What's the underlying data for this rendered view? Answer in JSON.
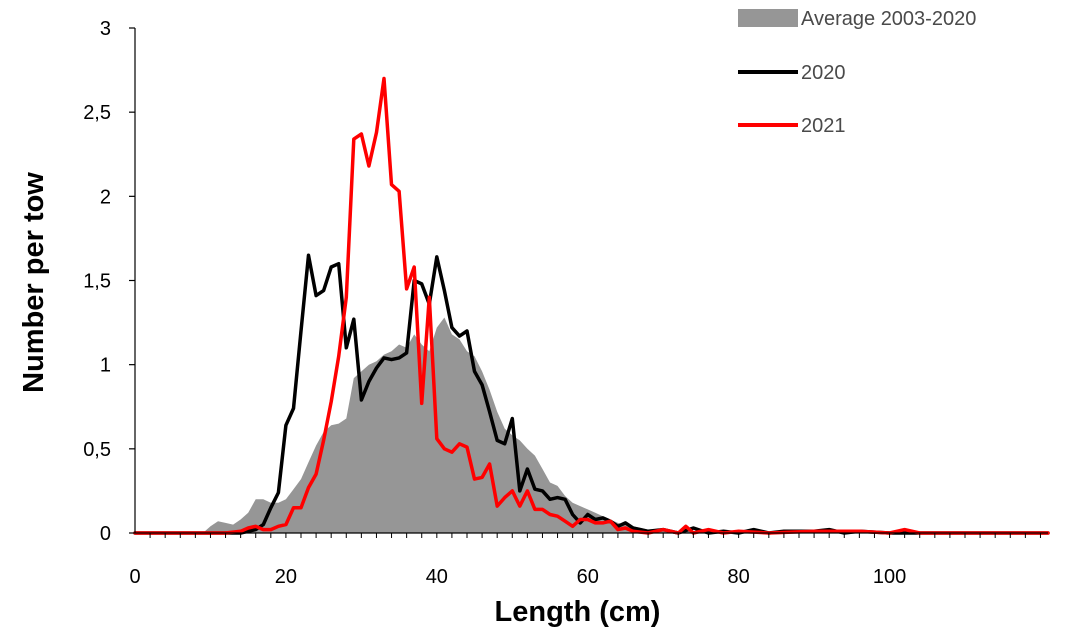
{
  "chart_data": {
    "type": "area",
    "title": "",
    "xlabel": "Length (cm)",
    "ylabel": "Number per tow",
    "xlim": [
      0,
      121
    ],
    "ylim": [
      0,
      3
    ],
    "x_ticks": [
      {
        "value": 0,
        "label": "0"
      },
      {
        "value": 20,
        "label": "20"
      },
      {
        "value": 40,
        "label": "40"
      },
      {
        "value": 60,
        "label": "60"
      },
      {
        "value": 80,
        "label": "80"
      },
      {
        "value": 100,
        "label": "100"
      }
    ],
    "y_ticks": [
      {
        "value": 0,
        "label": "0"
      },
      {
        "value": 0.5,
        "label": "0,5"
      },
      {
        "value": 1,
        "label": "1"
      },
      {
        "value": 1.5,
        "label": "1,5"
      },
      {
        "value": 2,
        "label": "2"
      },
      {
        "value": 2.5,
        "label": "2,5"
      },
      {
        "value": 3,
        "label": "3"
      }
    ],
    "grid": false,
    "legend_position": "top-right",
    "series": [
      {
        "name": "Average 2003-2020",
        "kind": "area",
        "color": "#969696",
        "points": [
          [
            0,
            0
          ],
          [
            5,
            0
          ],
          [
            9,
            0
          ],
          [
            10,
            0.04
          ],
          [
            11,
            0.07
          ],
          [
            12,
            0.06
          ],
          [
            13,
            0.05
          ],
          [
            14,
            0.08
          ],
          [
            15,
            0.12
          ],
          [
            16,
            0.2
          ],
          [
            17,
            0.2
          ],
          [
            18,
            0.18
          ],
          [
            19,
            0.18
          ],
          [
            20,
            0.2
          ],
          [
            21,
            0.26
          ],
          [
            22,
            0.32
          ],
          [
            23,
            0.42
          ],
          [
            24,
            0.52
          ],
          [
            25,
            0.6
          ],
          [
            26,
            0.64
          ],
          [
            27,
            0.65
          ],
          [
            28,
            0.68
          ],
          [
            29,
            0.92
          ],
          [
            30,
            0.96
          ],
          [
            31,
            1.0
          ],
          [
            32,
            1.02
          ],
          [
            33,
            1.06
          ],
          [
            34,
            1.08
          ],
          [
            35,
            1.12
          ],
          [
            36,
            1.1
          ],
          [
            37,
            1.18
          ],
          [
            38,
            1.12
          ],
          [
            39,
            1.08
          ],
          [
            40,
            1.22
          ],
          [
            41,
            1.28
          ],
          [
            42,
            1.18
          ],
          [
            43,
            1.15
          ],
          [
            44,
            1.08
          ],
          [
            45,
            1.05
          ],
          [
            46,
            0.96
          ],
          [
            47,
            0.85
          ],
          [
            48,
            0.72
          ],
          [
            49,
            0.62
          ],
          [
            50,
            0.58
          ],
          [
            51,
            0.55
          ],
          [
            52,
            0.5
          ],
          [
            53,
            0.46
          ],
          [
            54,
            0.38
          ],
          [
            55,
            0.3
          ],
          [
            56,
            0.28
          ],
          [
            57,
            0.22
          ],
          [
            58,
            0.18
          ],
          [
            59,
            0.16
          ],
          [
            60,
            0.14
          ],
          [
            61,
            0.12
          ],
          [
            62,
            0.1
          ],
          [
            63,
            0.08
          ],
          [
            64,
            0.06
          ],
          [
            65,
            0.05
          ],
          [
            66,
            0.04
          ],
          [
            67,
            0.03
          ],
          [
            68,
            0.02
          ],
          [
            69,
            0.02
          ],
          [
            70,
            0.01
          ],
          [
            75,
            0.01
          ],
          [
            80,
            0
          ],
          [
            121,
            0
          ]
        ]
      },
      {
        "name": "2020",
        "kind": "line",
        "color": "#000000",
        "points": [
          [
            0,
            0
          ],
          [
            10,
            0
          ],
          [
            12,
            0
          ],
          [
            14,
            0
          ],
          [
            15,
            0.01
          ],
          [
            16,
            0.02
          ],
          [
            17,
            0.05
          ],
          [
            18,
            0.15
          ],
          [
            19,
            0.24
          ],
          [
            20,
            0.64
          ],
          [
            21,
            0.74
          ],
          [
            22,
            1.2
          ],
          [
            23,
            1.65
          ],
          [
            24,
            1.41
          ],
          [
            25,
            1.44
          ],
          [
            26,
            1.58
          ],
          [
            27,
            1.6
          ],
          [
            28,
            1.1
          ],
          [
            29,
            1.27
          ],
          [
            30,
            0.79
          ],
          [
            31,
            0.9
          ],
          [
            32,
            0.98
          ],
          [
            33,
            1.04
          ],
          [
            34,
            1.03
          ],
          [
            35,
            1.04
          ],
          [
            36,
            1.07
          ],
          [
            37,
            1.5
          ],
          [
            38,
            1.48
          ],
          [
            39,
            1.36
          ],
          [
            40,
            1.64
          ],
          [
            41,
            1.44
          ],
          [
            42,
            1.22
          ],
          [
            43,
            1.17
          ],
          [
            44,
            1.2
          ],
          [
            45,
            0.96
          ],
          [
            46,
            0.88
          ],
          [
            47,
            0.72
          ],
          [
            48,
            0.55
          ],
          [
            49,
            0.53
          ],
          [
            50,
            0.68
          ],
          [
            51,
            0.25
          ],
          [
            52,
            0.38
          ],
          [
            53,
            0.26
          ],
          [
            54,
            0.25
          ],
          [
            55,
            0.2
          ],
          [
            56,
            0.21
          ],
          [
            57,
            0.2
          ],
          [
            58,
            0.11
          ],
          [
            59,
            0.06
          ],
          [
            60,
            0.11
          ],
          [
            61,
            0.08
          ],
          [
            62,
            0.09
          ],
          [
            63,
            0.07
          ],
          [
            64,
            0.04
          ],
          [
            65,
            0.06
          ],
          [
            66,
            0.03
          ],
          [
            67,
            0.02
          ],
          [
            68,
            0.01
          ],
          [
            70,
            0.02
          ],
          [
            72,
            0
          ],
          [
            74,
            0.03
          ],
          [
            76,
            0
          ],
          [
            78,
            0.01
          ],
          [
            80,
            0
          ],
          [
            82,
            0.02
          ],
          [
            84,
            0
          ],
          [
            86,
            0.01
          ],
          [
            90,
            0.01
          ],
          [
            92,
            0.02
          ],
          [
            94,
            0
          ],
          [
            96,
            0.01
          ],
          [
            100,
            0
          ],
          [
            121,
            0
          ]
        ]
      },
      {
        "name": "2021",
        "kind": "line",
        "color": "#ff0000",
        "points": [
          [
            0,
            0
          ],
          [
            12,
            0
          ],
          [
            14,
            0.01
          ],
          [
            15,
            0.03
          ],
          [
            16,
            0.04
          ],
          [
            17,
            0.02
          ],
          [
            18,
            0.02
          ],
          [
            19,
            0.04
          ],
          [
            20,
            0.05
          ],
          [
            21,
            0.15
          ],
          [
            22,
            0.15
          ],
          [
            23,
            0.27
          ],
          [
            24,
            0.35
          ],
          [
            25,
            0.55
          ],
          [
            26,
            0.78
          ],
          [
            27,
            1.05
          ],
          [
            28,
            1.4
          ],
          [
            29,
            2.34
          ],
          [
            30,
            2.37
          ],
          [
            31,
            2.18
          ],
          [
            32,
            2.38
          ],
          [
            33,
            2.7
          ],
          [
            34,
            2.07
          ],
          [
            35,
            2.03
          ],
          [
            36,
            1.45
          ],
          [
            37,
            1.58
          ],
          [
            38,
            0.77
          ],
          [
            39,
            1.4
          ],
          [
            40,
            0.56
          ],
          [
            41,
            0.5
          ],
          [
            42,
            0.48
          ],
          [
            43,
            0.53
          ],
          [
            44,
            0.51
          ],
          [
            45,
            0.32
          ],
          [
            46,
            0.33
          ],
          [
            47,
            0.41
          ],
          [
            48,
            0.16
          ],
          [
            49,
            0.21
          ],
          [
            50,
            0.25
          ],
          [
            51,
            0.16
          ],
          [
            52,
            0.25
          ],
          [
            53,
            0.14
          ],
          [
            54,
            0.14
          ],
          [
            55,
            0.11
          ],
          [
            56,
            0.1
          ],
          [
            57,
            0.07
          ],
          [
            58,
            0.04
          ],
          [
            59,
            0.08
          ],
          [
            60,
            0.08
          ],
          [
            61,
            0.06
          ],
          [
            62,
            0.06
          ],
          [
            63,
            0.07
          ],
          [
            64,
            0.02
          ],
          [
            65,
            0.03
          ],
          [
            66,
            0.01
          ],
          [
            68,
            0
          ],
          [
            70,
            0.02
          ],
          [
            72,
            0
          ],
          [
            73,
            0.04
          ],
          [
            74,
            0
          ],
          [
            76,
            0.02
          ],
          [
            78,
            0
          ],
          [
            80,
            0.01
          ],
          [
            84,
            0
          ],
          [
            90,
            0.01
          ],
          [
            96,
            0.01
          ],
          [
            100,
            0
          ],
          [
            102,
            0.02
          ],
          [
            104,
            0
          ],
          [
            121,
            0
          ]
        ]
      }
    ]
  }
}
